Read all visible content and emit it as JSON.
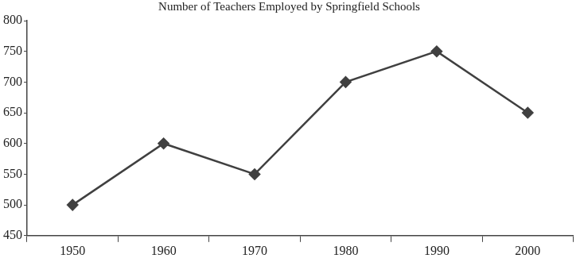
{
  "chart_data": {
    "type": "line",
    "title": "Number of Teachers Employed by Springfield Schools",
    "categories": [
      "1950",
      "1960",
      "1970",
      "1980",
      "1990",
      "2000"
    ],
    "values": [
      500,
      600,
      550,
      700,
      750,
      650
    ],
    "color": "#404040",
    "marker": "diamond",
    "ylim": [
      450,
      800
    ],
    "yticks": [
      450,
      500,
      550,
      600,
      650,
      700,
      750,
      800
    ],
    "grid": false
  }
}
